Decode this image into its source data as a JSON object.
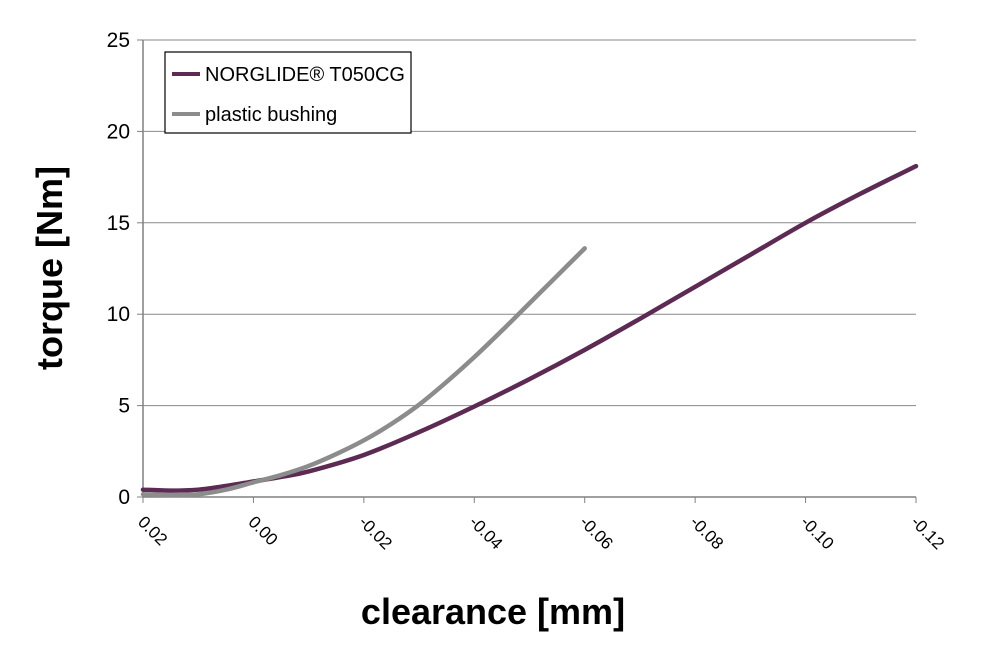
{
  "chart_data": {
    "type": "line",
    "xlabel": "clearance [mm]",
    "ylabel": "torque [Nm]",
    "xlim": [
      0.02,
      -0.12
    ],
    "ylim": [
      0,
      25
    ],
    "x_ticks": [
      "0.02",
      "0.00",
      "-0.02",
      "-0.04",
      "-0.06",
      "-0.08",
      "-0.10",
      "-0.12"
    ],
    "y_ticks": [
      "0",
      "5",
      "10",
      "15",
      "20",
      "25"
    ],
    "grid": "horizontal",
    "legend_position": "top-left",
    "series": [
      {
        "name": "NORGLIDE® T050CG",
        "color": "#5c2a52",
        "x": [
          0.02,
          0.015,
          0.01,
          0.005,
          0.0,
          -0.005,
          -0.01,
          -0.02,
          -0.03,
          -0.04,
          -0.05,
          -0.06,
          -0.07,
          -0.08,
          -0.09,
          -0.1,
          -0.11,
          -0.12
        ],
        "y": [
          0.4,
          0.35,
          0.4,
          0.6,
          0.85,
          1.1,
          1.4,
          2.3,
          3.55,
          4.95,
          6.45,
          8.05,
          9.75,
          11.5,
          13.25,
          15.0,
          16.6,
          18.1
        ]
      },
      {
        "name": "plastic bushing",
        "color": "#8c8c8c",
        "x": [
          0.02,
          0.015,
          0.01,
          0.005,
          0.0,
          -0.005,
          -0.01,
          -0.015,
          -0.02,
          -0.025,
          -0.03,
          -0.035,
          -0.04,
          -0.045,
          -0.05,
          -0.055,
          -0.06
        ],
        "y": [
          0.15,
          0.1,
          0.15,
          0.4,
          0.8,
          1.2,
          1.7,
          2.35,
          3.1,
          4.0,
          5.05,
          6.3,
          7.65,
          9.1,
          10.6,
          12.1,
          13.6
        ]
      }
    ]
  }
}
